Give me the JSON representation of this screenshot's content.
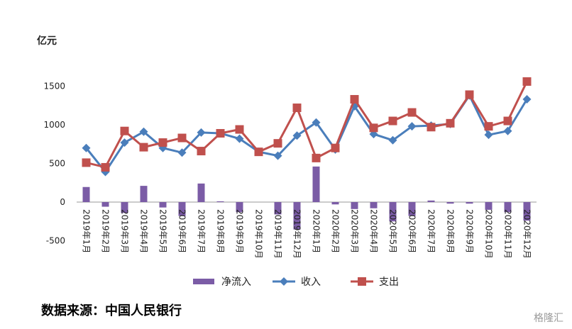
{
  "chart_data": {
    "type": "bar+line",
    "ylabel": "亿元",
    "ylim": [
      -500,
      1750
    ],
    "yticks": [
      -500,
      0,
      500,
      1000,
      1500
    ],
    "categories": [
      "2019年1月",
      "2019年2月",
      "2019年3月",
      "2019年4月",
      "2019年5月",
      "2019年6月",
      "2019年7月",
      "2019年8月",
      "2019年9月",
      "2019年10月",
      "2019年11月",
      "2019年12月",
      "2020年1月",
      "2020年2月",
      "2020年3月",
      "2020年4月",
      "2020年5月",
      "2020年6月",
      "2020年7月",
      "2020年8月",
      "2020年9月",
      "2020年10月",
      "2020年11月",
      "2020年12月"
    ],
    "series": [
      {
        "name": "净流入",
        "type": "bar",
        "color": "#7b5ca6",
        "values": [
          195,
          -60,
          -140,
          210,
          -70,
          -180,
          240,
          10,
          -130,
          0,
          -160,
          -355,
          460,
          -30,
          -90,
          -80,
          -250,
          -180,
          20,
          -20,
          -20,
          -100,
          -130,
          -240
        ]
      },
      {
        "name": "收入",
        "type": "line",
        "marker": "diamond",
        "color": "#4a7ebb",
        "values": [
          700,
          390,
          770,
          910,
          700,
          640,
          900,
          890,
          820,
          650,
          600,
          860,
          1030,
          680,
          1240,
          880,
          800,
          980,
          990,
          1010,
          1380,
          870,
          920,
          1330
        ]
      },
      {
        "name": "支出",
        "type": "line",
        "marker": "square",
        "color": "#c0504d",
        "values": [
          510,
          450,
          920,
          710,
          770,
          830,
          660,
          890,
          940,
          650,
          760,
          1220,
          570,
          700,
          1330,
          960,
          1050,
          1160,
          970,
          1020,
          1390,
          980,
          1050,
          1560
        ]
      }
    ],
    "legend_position": "bottom"
  },
  "source_text": "数据来源：中国人民银行",
  "watermark": "格隆汇"
}
